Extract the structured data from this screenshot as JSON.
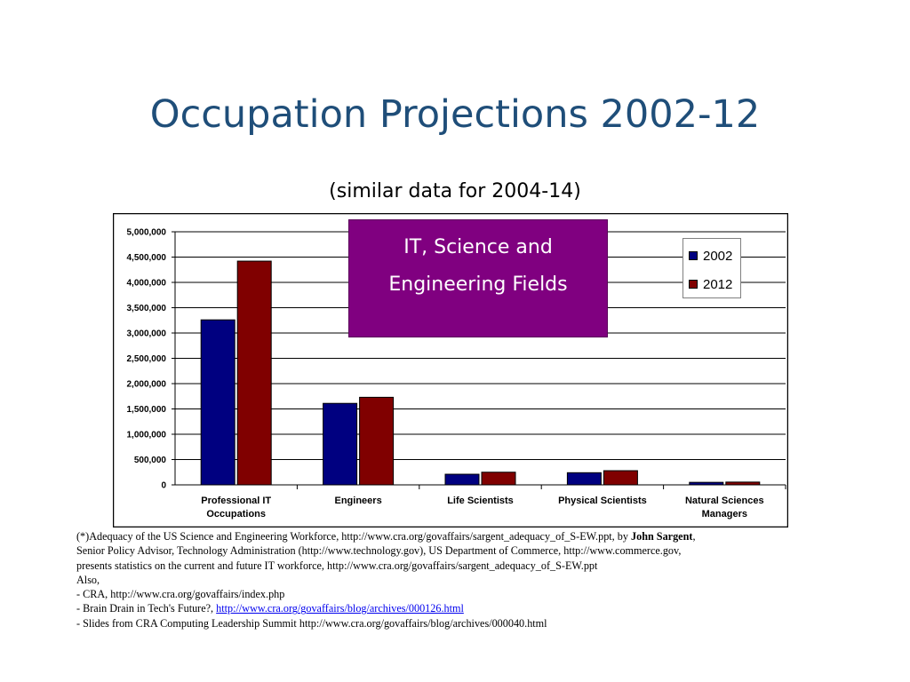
{
  "slide": {
    "title": "Occupation Projections 2002-12",
    "subtitle": "(similar data for 2004-14)"
  },
  "callout": {
    "line1": "IT, Science and",
    "line2": "Engineering Fields",
    "color": "#800080"
  },
  "chart_data": {
    "type": "bar",
    "categories": [
      [
        "Professional IT",
        "Occupations"
      ],
      [
        "Engineers"
      ],
      [
        "Life Scientists"
      ],
      [
        "Physical Scientists"
      ],
      [
        "Natural Sciences",
        "Managers"
      ]
    ],
    "series": [
      {
        "name": "2002",
        "color": "#000080",
        "values": [
          3260000,
          1610000,
          210000,
          240000,
          50000
        ]
      },
      {
        "name": "2012",
        "color": "#800000",
        "values": [
          4420000,
          1730000,
          250000,
          280000,
          55000
        ]
      }
    ],
    "ylim": [
      0,
      5000000
    ],
    "yticks": [
      "0",
      "500,000",
      "1,000,000",
      "1,500,000",
      "2,000,000",
      "2,500,000",
      "3,000,000",
      "3,500,000",
      "4,000,000",
      "4,500,000",
      "5,000,000"
    ],
    "grid": true,
    "legend_position": "top-right"
  },
  "notes": {
    "l1_a": "(*)Adequacy of the US Science and Engineering Workforce, http://www.cra.org/govaffairs/sargent_adequacy_of_S-EW.ppt, by ",
    "l1_b": "John Sargent",
    "l1_c": ",",
    "l2": "Senior Policy Advisor, Technology Administration (http://www.technology.gov), US Department of Commerce, http://www.commerce.gov,",
    "l3": "presents statistics on the current and future IT workforce, http://www.cra.org/govaffairs/sargent_adequacy_of_S-EW.ppt",
    "l4": "Also,",
    "l5": "- CRA, http://www.cra.org/govaffairs/index.php",
    "l6_a": "- Brain Drain in Tech's Future?,  ",
    "l6_link": "http://www.cra.org/govaffairs/blog/archives/000126.html",
    "l7": "- Slides from CRA Computing Leadership Summit  http://www.cra.org/govaffairs/blog/archives/000040.html"
  }
}
